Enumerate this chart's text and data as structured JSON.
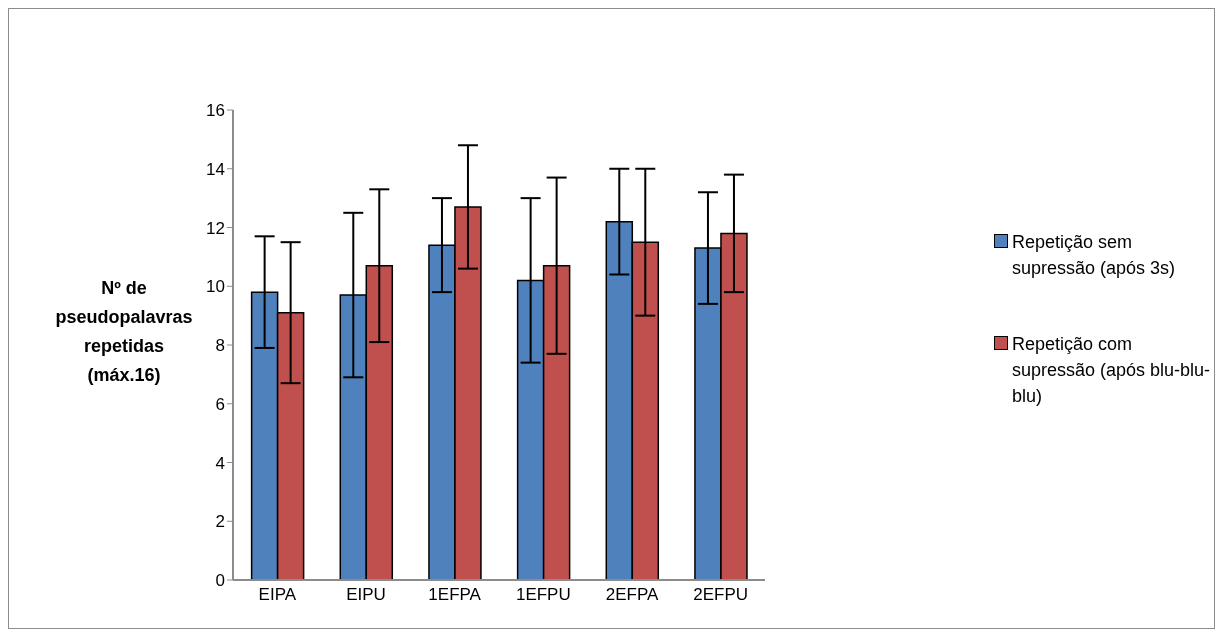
{
  "chart_data": {
    "type": "bar",
    "ylabel": "Nº de pseudopalavras repetidas (máx.16)",
    "categories": [
      "EIPA",
      "EIPU",
      "1EFPA",
      "1EFPU",
      "2EFPA",
      "2EFPU"
    ],
    "series": [
      {
        "name": "Repetição sem supressão (após 3s)",
        "color": "#4f81bd",
        "values": [
          9.8,
          9.7,
          11.4,
          10.2,
          12.2,
          11.3
        ],
        "errors": [
          1.9,
          2.8,
          1.6,
          2.8,
          1.8,
          1.9
        ]
      },
      {
        "name": "Repetição com supressão (após blu-blu-blu)",
        "color": "#c0504d",
        "values": [
          9.1,
          10.7,
          12.7,
          10.7,
          11.5,
          11.8
        ],
        "errors": [
          2.4,
          2.6,
          2.1,
          3.0,
          2.5,
          2.0
        ]
      }
    ],
    "ylim": [
      0,
      16
    ],
    "yticks": [
      0,
      2,
      4,
      6,
      8,
      10,
      12,
      14,
      16
    ],
    "grid": false,
    "legend": "right"
  }
}
